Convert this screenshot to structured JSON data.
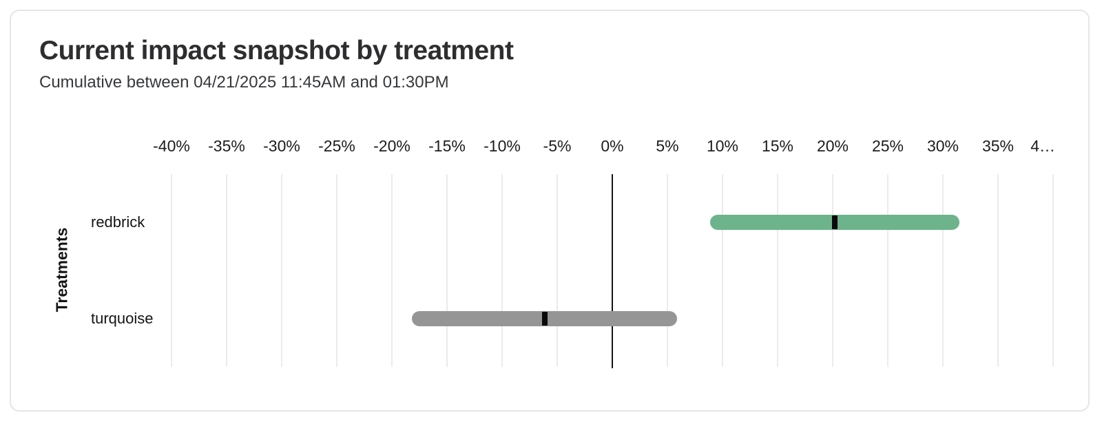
{
  "chart_data": {
    "type": "range_bar",
    "title": "Current impact snapshot by treatment",
    "subtitle": "Cumulative between 04/21/2025 11:45AM and 01:30PM",
    "xlabel": "",
    "ylabel": "Treatments",
    "x_unit": "percent",
    "xlim": [
      -42.5,
      42.5
    ],
    "grid": true,
    "zero_line": true,
    "legend": "none",
    "x_ticks": [
      {
        "value": -40,
        "label": "-40%"
      },
      {
        "value": -35,
        "label": "-35%"
      },
      {
        "value": -30,
        "label": "-30%"
      },
      {
        "value": -25,
        "label": "-25%"
      },
      {
        "value": -20,
        "label": "-20%"
      },
      {
        "value": -15,
        "label": "-15%"
      },
      {
        "value": -10,
        "label": "-10%"
      },
      {
        "value": -5,
        "label": "-5%"
      },
      {
        "value": 0,
        "label": "0%"
      },
      {
        "value": 5,
        "label": "5%"
      },
      {
        "value": 10,
        "label": "10%"
      },
      {
        "value": 15,
        "label": "15%"
      },
      {
        "value": 20,
        "label": "20%"
      },
      {
        "value": 25,
        "label": "25%"
      },
      {
        "value": 30,
        "label": "30%"
      },
      {
        "value": 35,
        "label": "35%"
      },
      {
        "value": 40,
        "label": "4…"
      }
    ],
    "categories": [
      "redbrick",
      "turquoise"
    ],
    "series": [
      {
        "name": "redbrick",
        "low": 8.9,
        "high": 31.5,
        "value": 20.2,
        "bar_color": "#6db48c"
      },
      {
        "name": "turquoise",
        "low": -18.2,
        "high": 5.9,
        "value": -6.1,
        "bar_color": "#959595"
      }
    ],
    "marker_color": "#0a0a0a"
  },
  "theme": {
    "grid_color": "#ebebeb",
    "zero_line_color": "#121212",
    "card_border_color": "#e5e5e8",
    "background_color": "#ffffff"
  }
}
